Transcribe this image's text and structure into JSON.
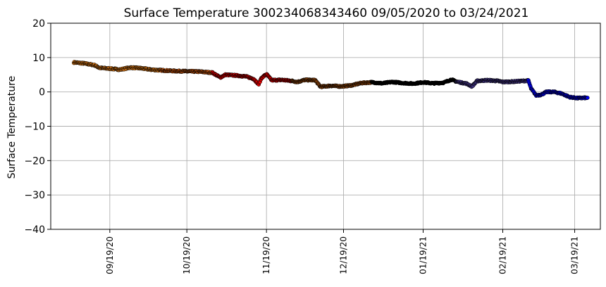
{
  "chart_data": {
    "type": "scatter",
    "title": "Surface Temperature 300234068343460  09/05/2020 to 03/24/2021",
    "ylabel": "Surface Temperature",
    "xlabel": "",
    "ylim": [
      -40,
      20
    ],
    "xlim": [
      "2020-08-27",
      "2021-03-29"
    ],
    "yticks": [
      20,
      10,
      0,
      -10,
      -20,
      -30,
      -40
    ],
    "ytick_labels": [
      "20",
      "10",
      "0",
      "−10",
      "−20",
      "−30",
      "−40"
    ],
    "xticks": [
      "2020-09-19",
      "2020-10-19",
      "2020-11-19",
      "2020-12-19",
      "2021-01-19",
      "2021-02-19",
      "2021-03-19"
    ],
    "xtick_labels": [
      "09/19/20",
      "10/19/20",
      "11/19/20",
      "12/19/20",
      "01/19/21",
      "02/19/21",
      "03/19/21"
    ],
    "grid": true,
    "series": [
      {
        "color": "#ff8c1a",
        "points": [
          [
            "2020-09-05",
            8.6
          ],
          [
            "2020-09-09",
            8.3
          ],
          [
            "2020-09-13",
            7.8
          ],
          [
            "2020-09-15",
            7.0
          ],
          [
            "2020-09-19",
            6.8
          ],
          [
            "2020-09-23",
            6.5
          ],
          [
            "2020-09-27",
            7.1
          ],
          [
            "2020-10-01",
            6.9
          ],
          [
            "2020-10-05",
            6.5
          ],
          [
            "2020-10-09",
            6.3
          ]
        ]
      },
      {
        "color": "#e06010",
        "points": [
          [
            "2020-10-09",
            6.3
          ],
          [
            "2020-10-14",
            6.1
          ],
          [
            "2020-10-19",
            6.0
          ],
          [
            "2020-10-24",
            5.9
          ],
          [
            "2020-10-29",
            5.6
          ]
        ]
      },
      {
        "color": "#ee0000",
        "points": [
          [
            "2020-10-29",
            5.6
          ],
          [
            "2020-11-01",
            4.2
          ],
          [
            "2020-11-03",
            5.0
          ],
          [
            "2020-11-07",
            4.8
          ],
          [
            "2020-11-11",
            4.5
          ],
          [
            "2020-11-14",
            3.8
          ],
          [
            "2020-11-16",
            2.2
          ],
          [
            "2020-11-17",
            4.0
          ],
          [
            "2020-11-19",
            5.2
          ],
          [
            "2020-11-21",
            3.4
          ],
          [
            "2020-11-25",
            3.5
          ],
          [
            "2020-11-29",
            3.2
          ]
        ]
      },
      {
        "color": "#9a4a0c",
        "points": [
          [
            "2020-11-29",
            3.2
          ],
          [
            "2020-12-01",
            2.9
          ],
          [
            "2020-12-04",
            3.5
          ],
          [
            "2020-12-08",
            3.4
          ],
          [
            "2020-12-10",
            1.5
          ],
          [
            "2020-12-14",
            1.8
          ],
          [
            "2020-12-18",
            1.6
          ],
          [
            "2020-12-22",
            1.9
          ],
          [
            "2020-12-26",
            2.6
          ],
          [
            "2020-12-30",
            2.8
          ]
        ]
      },
      {
        "color": "#000000",
        "points": [
          [
            "2020-12-30",
            2.8
          ],
          [
            "2021-01-03",
            2.5
          ],
          [
            "2021-01-07",
            2.9
          ],
          [
            "2021-01-11",
            2.6
          ],
          [
            "2021-01-15",
            2.4
          ],
          [
            "2021-01-19",
            2.8
          ],
          [
            "2021-01-23",
            2.5
          ],
          [
            "2021-01-27",
            2.7
          ],
          [
            "2021-01-30",
            3.6
          ],
          [
            "2021-02-01",
            3.0
          ]
        ]
      },
      {
        "color": "#4a3a96",
        "points": [
          [
            "2021-02-01",
            3.0
          ],
          [
            "2021-02-05",
            2.4
          ],
          [
            "2021-02-07",
            1.6
          ],
          [
            "2021-02-09",
            3.2
          ],
          [
            "2021-02-13",
            3.4
          ],
          [
            "2021-02-17",
            3.2
          ],
          [
            "2021-02-19",
            2.9
          ],
          [
            "2021-02-23",
            3.0
          ],
          [
            "2021-02-27",
            3.2
          ],
          [
            "2021-03-01",
            3.3
          ]
        ]
      },
      {
        "color": "#0000ee",
        "points": [
          [
            "2021-03-01",
            3.3
          ],
          [
            "2021-03-02",
            1.0
          ],
          [
            "2021-03-04",
            -1.0
          ],
          [
            "2021-03-06",
            -0.8
          ],
          [
            "2021-03-08",
            0.0
          ],
          [
            "2021-03-11",
            0.0
          ],
          [
            "2021-03-14",
            -0.5
          ],
          [
            "2021-03-17",
            -1.5
          ],
          [
            "2021-03-20",
            -1.8
          ],
          [
            "2021-03-24",
            -1.7
          ]
        ]
      }
    ]
  }
}
